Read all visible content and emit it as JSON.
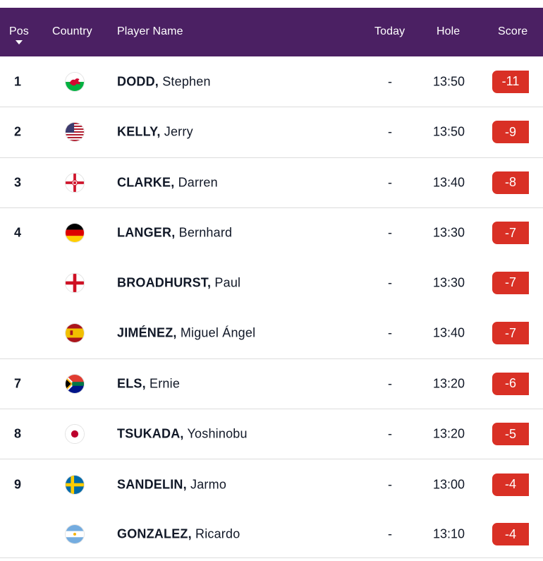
{
  "header": {
    "pos": "Pos",
    "country": "Country",
    "player": "Player Name",
    "today": "Today",
    "hole": "Hole",
    "score": "Score"
  },
  "colors": {
    "header_bg": "#4b2063",
    "score_badge": "#d93025"
  },
  "rows": [
    {
      "pos": "1",
      "flag": "wales-flag-icon",
      "last": "DODD,",
      "first": "Stephen",
      "today": "-",
      "hole": "13:50",
      "score": "-11"
    },
    {
      "pos": "2",
      "flag": "usa-flag-icon",
      "last": "KELLY,",
      "first": "Jerry",
      "today": "-",
      "hole": "13:50",
      "score": "-9"
    },
    {
      "pos": "3",
      "flag": "northern-ireland-flag-icon",
      "last": "CLARKE,",
      "first": "Darren",
      "today": "-",
      "hole": "13:40",
      "score": "-8"
    },
    {
      "pos": "4",
      "flag": "germany-flag-icon",
      "last": "LANGER,",
      "first": "Bernhard",
      "today": "-",
      "hole": "13:30",
      "score": "-7"
    },
    {
      "pos": "",
      "flag": "england-flag-icon",
      "last": "BROADHURST,",
      "first": "Paul",
      "today": "-",
      "hole": "13:30",
      "score": "-7"
    },
    {
      "pos": "",
      "flag": "spain-flag-icon",
      "last": "JIMÉNEZ,",
      "first": "Miguel Ángel",
      "today": "-",
      "hole": "13:40",
      "score": "-7"
    },
    {
      "pos": "7",
      "flag": "south-africa-flag-icon",
      "last": "ELS,",
      "first": "Ernie",
      "today": "-",
      "hole": "13:20",
      "score": "-6"
    },
    {
      "pos": "8",
      "flag": "japan-flag-icon",
      "last": "TSUKADA,",
      "first": "Yoshinobu",
      "today": "-",
      "hole": "13:20",
      "score": "-5"
    },
    {
      "pos": "9",
      "flag": "sweden-flag-icon",
      "last": "SANDELIN,",
      "first": "Jarmo",
      "today": "-",
      "hole": "13:00",
      "score": "-4"
    },
    {
      "pos": "",
      "flag": "argentina-flag-icon",
      "last": "GONZALEZ,",
      "first": "Ricardo",
      "today": "-",
      "hole": "13:10",
      "score": "-4"
    }
  ]
}
